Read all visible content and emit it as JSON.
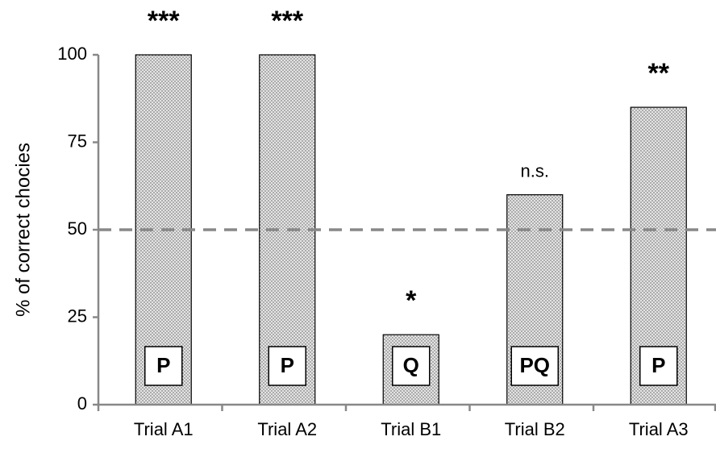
{
  "chart_data": {
    "type": "bar",
    "y_label": "% of correct chocies",
    "categories": [
      "Trial A1",
      "Trial A2",
      "Trial B1",
      "Trial B2",
      "Trial A3"
    ],
    "values": [
      100,
      100,
      20,
      60,
      85
    ],
    "annotations": [
      "***",
      "***",
      "*",
      "n.s.",
      "**"
    ],
    "bar_labels": [
      "P",
      "P",
      "Q",
      "PQ",
      "P"
    ],
    "color": "#d9d9d9",
    "reference_line": 50,
    "ylim": [
      0,
      100
    ],
    "yticks": [
      0,
      25,
      50,
      75,
      100
    ]
  }
}
